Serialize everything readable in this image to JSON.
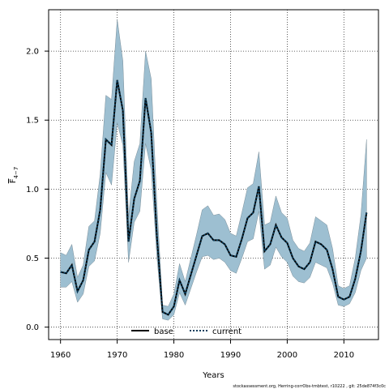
{
  "chart_data": {
    "type": "line",
    "xlabel": "Years",
    "ylabel": "F",
    "ylabel_sub": "4−7",
    "xlim": [
      1957.9,
      2016.1
    ],
    "ylim": [
      -0.09,
      2.3
    ],
    "xticks": [
      1960,
      1970,
      1980,
      1990,
      2000,
      2010
    ],
    "yticks": [
      0.0,
      0.5,
      1.0,
      1.5,
      2.0
    ],
    "ytick_labels": [
      "0.0",
      "0.5",
      "1.0",
      "1.5",
      "2.0"
    ],
    "grid": true,
    "legend": {
      "placement": "bottom-center",
      "entries": [
        "base",
        "current"
      ]
    },
    "colors": {
      "band": "#9dbfd1",
      "band_edge": "#7a8e99",
      "current": "#0a3d5c",
      "base": "#000000"
    },
    "years": [
      1960,
      1961,
      1962,
      1963,
      1964,
      1965,
      1966,
      1967,
      1968,
      1969,
      1970,
      1971,
      1972,
      1973,
      1974,
      1975,
      1976,
      1977,
      1978,
      1979,
      1980,
      1981,
      1982,
      1983,
      1984,
      1985,
      1986,
      1987,
      1988,
      1989,
      1990,
      1991,
      1992,
      1993,
      1994,
      1995,
      1996,
      1997,
      1998,
      1999,
      2000,
      2001,
      2002,
      2003,
      2004,
      2005,
      2006,
      2007,
      2008,
      2009,
      2010,
      2011,
      2012,
      2013,
      2014
    ],
    "series": [
      {
        "name": "base",
        "style": "solid",
        "values": [
          0.4,
          0.39,
          0.45,
          0.26,
          0.34,
          0.56,
          0.62,
          0.85,
          1.36,
          1.32,
          1.79,
          1.57,
          0.62,
          0.93,
          1.06,
          1.66,
          1.41,
          0.66,
          0.11,
          0.09,
          0.15,
          0.34,
          0.24,
          0.38,
          0.52,
          0.66,
          0.68,
          0.63,
          0.63,
          0.6,
          0.52,
          0.51,
          0.64,
          0.79,
          0.83,
          1.02,
          0.55,
          0.6,
          0.74,
          0.65,
          0.61,
          0.5,
          0.44,
          0.42,
          0.47,
          0.62,
          0.6,
          0.56,
          0.42,
          0.22,
          0.2,
          0.22,
          0.35,
          0.55,
          0.83
        ]
      },
      {
        "name": "current",
        "style": "dotted",
        "values": [
          0.4,
          0.39,
          0.45,
          0.26,
          0.34,
          0.56,
          0.62,
          0.85,
          1.36,
          1.32,
          1.79,
          1.57,
          0.62,
          0.93,
          1.06,
          1.66,
          1.41,
          0.66,
          0.11,
          0.09,
          0.15,
          0.34,
          0.24,
          0.38,
          0.52,
          0.66,
          0.68,
          0.63,
          0.63,
          0.6,
          0.52,
          0.51,
          0.64,
          0.79,
          0.83,
          1.02,
          0.55,
          0.6,
          0.74,
          0.65,
          0.61,
          0.5,
          0.44,
          0.42,
          0.47,
          0.62,
          0.6,
          0.56,
          0.42,
          0.22,
          0.2,
          0.22,
          0.35,
          0.55,
          0.83
        ]
      }
    ],
    "band": {
      "upper": [
        0.54,
        0.52,
        0.6,
        0.36,
        0.45,
        0.73,
        0.77,
        1.11,
        1.68,
        1.65,
        2.23,
        1.93,
        0.8,
        1.2,
        1.33,
        2.0,
        1.8,
        0.9,
        0.16,
        0.15,
        0.24,
        0.46,
        0.33,
        0.5,
        0.67,
        0.85,
        0.88,
        0.81,
        0.82,
        0.78,
        0.68,
        0.66,
        0.83,
        1.01,
        1.04,
        1.27,
        0.74,
        0.76,
        0.95,
        0.83,
        0.79,
        0.63,
        0.57,
        0.55,
        0.61,
        0.8,
        0.77,
        0.74,
        0.57,
        0.3,
        0.28,
        0.3,
        0.5,
        0.81,
        1.36
      ],
      "lower": [
        0.29,
        0.29,
        0.33,
        0.18,
        0.24,
        0.44,
        0.48,
        0.68,
        1.12,
        1.03,
        1.48,
        1.32,
        0.47,
        0.76,
        0.84,
        1.33,
        1.14,
        0.51,
        0.06,
        0.05,
        0.09,
        0.25,
        0.16,
        0.28,
        0.4,
        0.51,
        0.52,
        0.49,
        0.5,
        0.47,
        0.41,
        0.39,
        0.5,
        0.62,
        0.64,
        0.84,
        0.42,
        0.45,
        0.58,
        0.51,
        0.47,
        0.37,
        0.33,
        0.32,
        0.36,
        0.47,
        0.45,
        0.43,
        0.32,
        0.16,
        0.15,
        0.17,
        0.25,
        0.41,
        0.5
      ]
    }
  },
  "footer": "stockassessment.org, Herring-corrObs-tmbtest, r10222 , git: 25de874f3c0c"
}
